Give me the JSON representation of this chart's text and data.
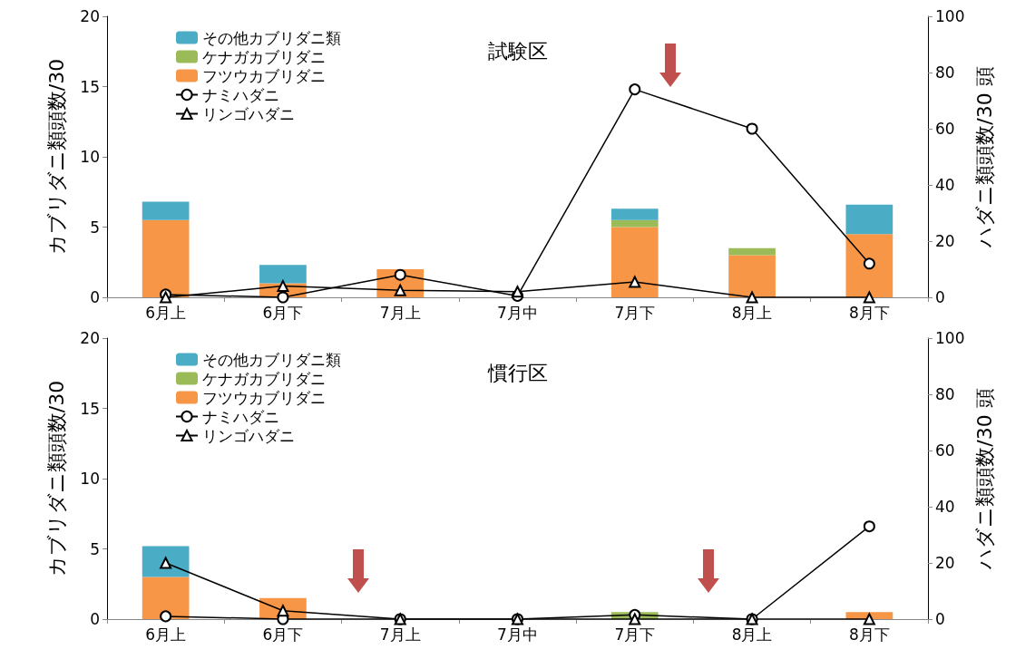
{
  "chart_data": [
    {
      "type": "bar",
      "title": "試験区",
      "stacked": true,
      "categories": [
        "6月上",
        "6月下",
        "7月上",
        "7月中",
        "7月下",
        "8月上",
        "8月下"
      ],
      "ylabel": "カブリダニ類頭数/30",
      "y2label": "ハダニ類頭数/30 頭",
      "ylim": [
        0,
        20
      ],
      "yticks": [
        0,
        5,
        10,
        15,
        20
      ],
      "y2lim": [
        0,
        100
      ],
      "y2ticks": [
        0,
        20,
        40,
        60,
        80,
        100
      ],
      "legend": "top left",
      "grid": false,
      "series": [
        {
          "name": "フツウカブリダニ",
          "color": "#f79646",
          "values": [
            5.5,
            1.0,
            2.0,
            0,
            5.0,
            3.0,
            4.5
          ]
        },
        {
          "name": "ケナガカブリダニ",
          "color": "#9bbb59",
          "values": [
            0,
            0,
            0,
            0,
            0.5,
            0.5,
            0
          ]
        },
        {
          "name": "その他カブリダニ類",
          "color": "#4bacc6",
          "values": [
            1.3,
            1.3,
            0,
            0,
            0.8,
            0,
            2.1
          ]
        },
        {
          "name": "ナミハダニ",
          "type": "line",
          "axis": "y2",
          "color": "#000000",
          "marker": "circle",
          "values": [
            1,
            0,
            8,
            0.5,
            74,
            60,
            12
          ]
        },
        {
          "name": "リンゴハダニ",
          "type": "line",
          "axis": "y2",
          "color": "#000000",
          "marker": "triangle",
          "values": [
            0,
            4,
            2.5,
            2,
            5.5,
            0,
            0
          ]
        }
      ]
    },
    {
      "type": "bar",
      "title": "慣行区",
      "stacked": true,
      "categories": [
        "6月上",
        "6月下",
        "7月上",
        "7月中",
        "7月下",
        "8月上",
        "8月下"
      ],
      "ylabel": "カブリダニ類頭数/30",
      "y2label": "ハダニ類頭数/30 頭",
      "ylim": [
        0,
        20
      ],
      "yticks": [
        0,
        5,
        10,
        15,
        20
      ],
      "y2lim": [
        0,
        100
      ],
      "y2ticks": [
        0,
        20,
        40,
        60,
        80,
        100
      ],
      "legend": "top left",
      "grid": false,
      "series": [
        {
          "name": "フツウカブリダニ",
          "color": "#f79646",
          "values": [
            3.0,
            1.5,
            0,
            0,
            0,
            0,
            0.5
          ]
        },
        {
          "name": "ケナガカブリダニ",
          "color": "#9bbb59",
          "values": [
            0,
            0,
            0,
            0,
            0.5,
            0,
            0
          ]
        },
        {
          "name": "その他カブリダニ類",
          "color": "#4bacc6",
          "values": [
            2.2,
            0,
            0,
            0,
            0,
            0,
            0
          ]
        },
        {
          "name": "ナミハダニ",
          "type": "line",
          "axis": "y2",
          "color": "#000000",
          "marker": "circle",
          "values": [
            1,
            0,
            0,
            0,
            1.5,
            0,
            33
          ]
        },
        {
          "name": "リンゴハダニ",
          "type": "line",
          "axis": "y2",
          "color": "#000000",
          "marker": "triangle",
          "values": [
            20,
            3,
            0,
            0,
            0,
            0,
            0
          ]
        }
      ]
    }
  ]
}
